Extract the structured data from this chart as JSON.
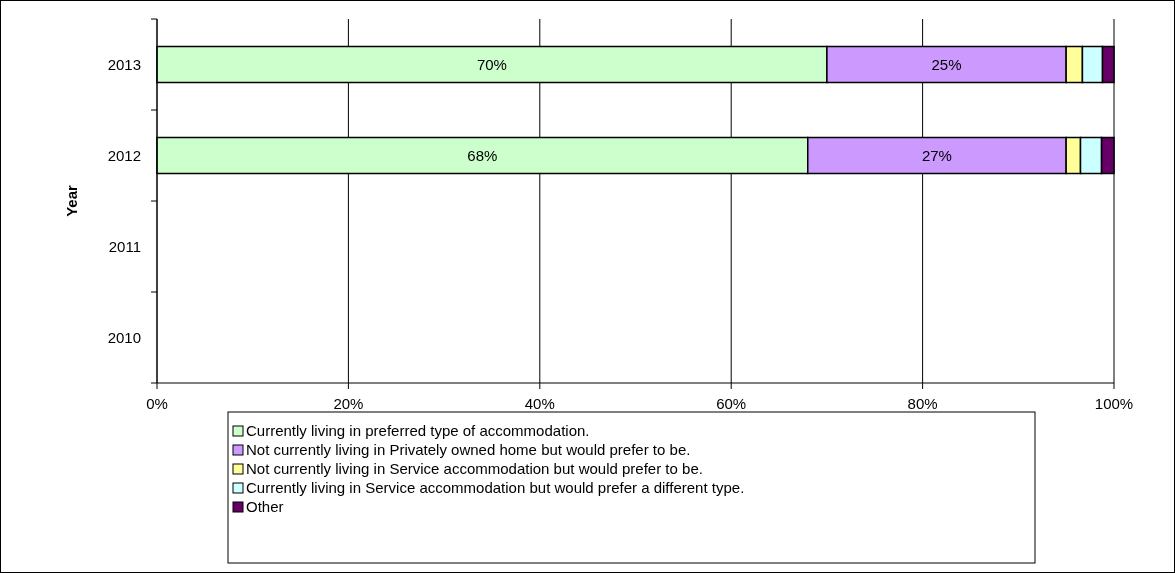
{
  "chart_data": {
    "type": "bar",
    "orientation": "horizontal",
    "stacked": true,
    "ylabel": "Year",
    "categories": [
      "2013",
      "2012",
      "2011",
      "2010"
    ],
    "series": [
      {
        "name": "Currently living in preferred type of accommodation.",
        "color": "#ccffcc",
        "values": [
          70,
          68,
          null,
          null
        ],
        "value_labels": [
          "70%",
          "68%",
          null,
          null
        ]
      },
      {
        "name": "Not currently living in Privately owned home but would prefer to be.",
        "color": "#cc99ff",
        "values": [
          25,
          27,
          null,
          null
        ],
        "value_labels": [
          "25%",
          "27%",
          null,
          null
        ]
      },
      {
        "name": "Not currently living in Service accommodation but would prefer to be.",
        "color": "#ffff99",
        "values": [
          1.7,
          1.5,
          null,
          null
        ]
      },
      {
        "name": "Currently living in Service accommodation but would prefer a different type.",
        "color": "#ccffff",
        "values": [
          2.1,
          2.2,
          null,
          null
        ]
      },
      {
        "name": "Other",
        "color": "#660066",
        "values": [
          1.2,
          1.3,
          null,
          null
        ]
      }
    ],
    "xlim": [
      0,
      100
    ],
    "xticks": [
      {
        "value": 0,
        "label": "0%"
      },
      {
        "value": 20,
        "label": "20%"
      },
      {
        "value": 40,
        "label": "40%"
      },
      {
        "value": 60,
        "label": "60%"
      },
      {
        "value": 80,
        "label": "80%"
      },
      {
        "value": 100,
        "label": "100%"
      }
    ],
    "grid": "x",
    "legend": "bottom"
  }
}
